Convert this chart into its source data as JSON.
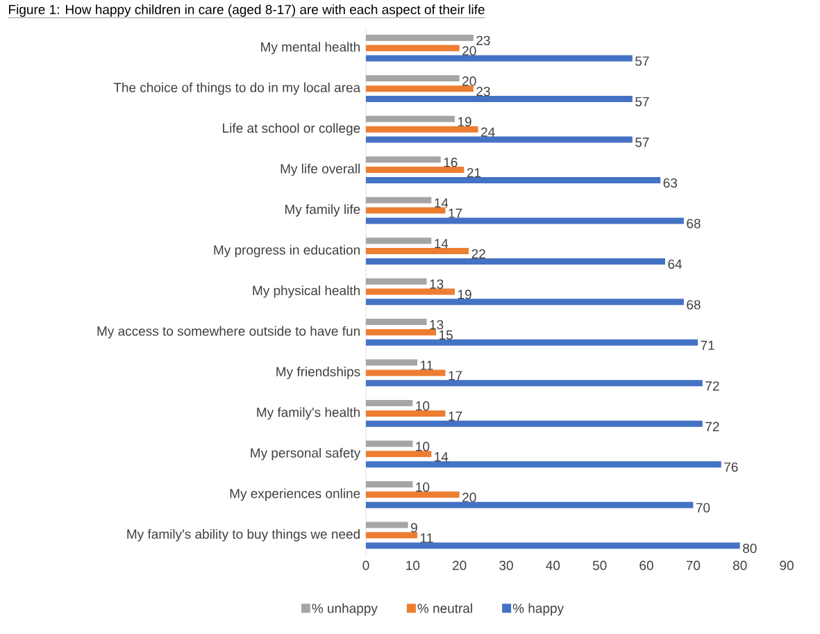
{
  "chart_data": {
    "type": "bar",
    "orientation": "horizontal",
    "title": "Figure 1: How happy children in care (aged 8-17) are with each aspect of their life",
    "categories": [
      "My mental health",
      "The choice of things to do in my local area",
      "Life at school or college",
      "My life overall",
      "My family life",
      "My progress in education",
      "My physical health",
      "My access to somewhere outside to have fun",
      "My friendships",
      "My family's health",
      "My personal safety",
      "My experiences online",
      "My family's ability to buy things we need"
    ],
    "series": [
      {
        "name": "% unhappy",
        "color": "#a5a5a5",
        "values": [
          23,
          20,
          19,
          16,
          14,
          14,
          13,
          13,
          11,
          10,
          10,
          10,
          9
        ]
      },
      {
        "name": "% neutral",
        "color": "#ed7d31",
        "values": [
          20,
          23,
          24,
          21,
          17,
          22,
          19,
          15,
          17,
          17,
          14,
          20,
          11
        ]
      },
      {
        "name": "% happy",
        "color": "#4472c4",
        "values": [
          57,
          57,
          57,
          63,
          68,
          64,
          68,
          71,
          72,
          72,
          76,
          70,
          80
        ]
      }
    ],
    "xlim": [
      0,
      90
    ],
    "xticks": [
      0,
      10,
      20,
      30,
      40,
      50,
      60,
      70,
      80,
      90
    ],
    "data_labels": true,
    "legend": "bottom",
    "grid": false
  }
}
